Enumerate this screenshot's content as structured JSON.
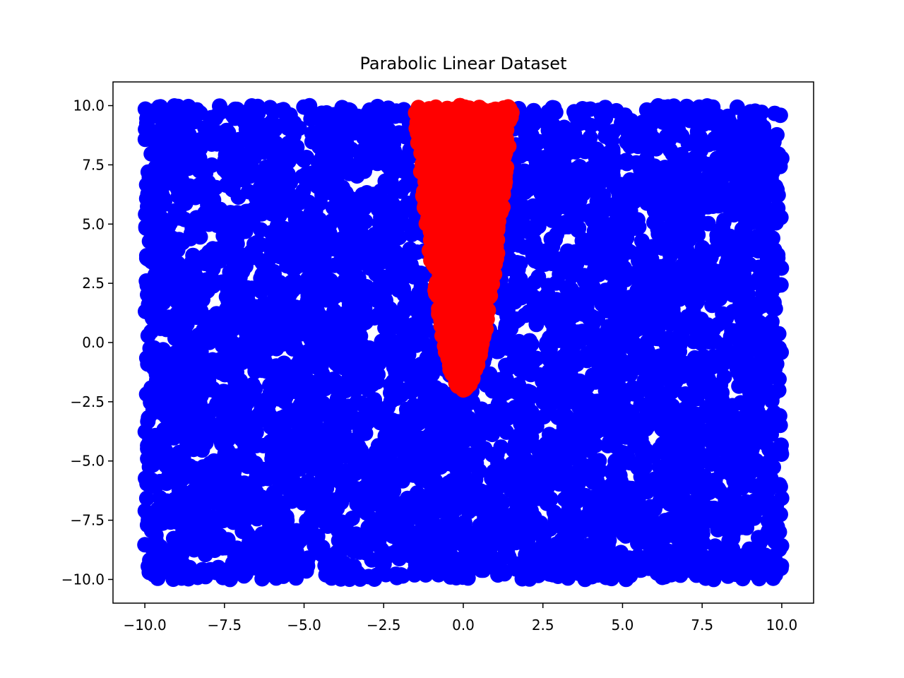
{
  "chart_data": {
    "type": "scatter",
    "title": "Parabolic Linear Dataset",
    "xlabel": "",
    "ylabel": "",
    "xlim": [
      -11.0,
      11.0
    ],
    "ylim": [
      -11.0,
      11.0
    ],
    "grid": false,
    "x_ticks": [
      -10.0,
      -7.5,
      -5.0,
      -2.5,
      0.0,
      2.5,
      5.0,
      7.5,
      10.0
    ],
    "x_tick_labels": [
      "−10.0",
      "−7.5",
      "−5.0",
      "−2.5",
      "0.0",
      "2.5",
      "5.0",
      "7.5",
      "10.0"
    ],
    "y_ticks": [
      10.0,
      7.5,
      5.0,
      2.5,
      0.0,
      -2.5,
      -5.0,
      -7.5,
      -10.0
    ],
    "y_tick_labels": [
      "10.0",
      "7.5",
      "5.0",
      "2.5",
      "0.0",
      "−2.5",
      "−5.0",
      "−7.5",
      "−10.0"
    ],
    "series": [
      {
        "color": "#0000ff",
        "region": "uniform over x in [-10, 10], y in [-10, 10], excluding the parabolic band",
        "x_range": [
          -10,
          10
        ],
        "y_range": [
          -10,
          10
        ]
      },
      {
        "color": "#ff0000",
        "region": "points with y greater than about 5x^2 - 2 within the plotted area",
        "boundary": "y = 5x^2 - 2",
        "y_range": [
          -2,
          10
        ]
      }
    ]
  }
}
